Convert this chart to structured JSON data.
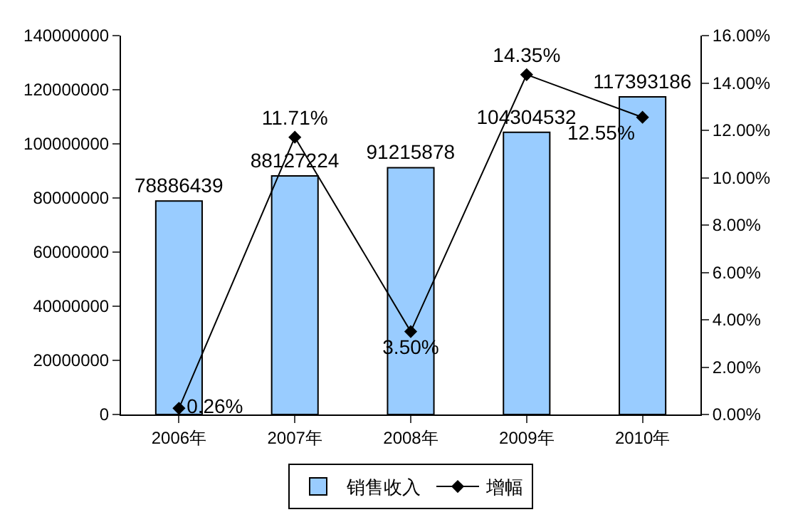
{
  "chart_data": {
    "type": "bar",
    "categories": [
      "2006年",
      "2007年",
      "2008年",
      "2009年",
      "2010年"
    ],
    "series": [
      {
        "name": "销售收入",
        "color": "#99ccff",
        "values": [
          78886439,
          88127224,
          91215878,
          104304532,
          117393186
        ],
        "value_labels": [
          "78886439",
          "88127224",
          "91215878",
          "104304532",
          "117393186"
        ]
      },
      {
        "name": "增幅",
        "type": "line",
        "axis": "y2",
        "color": "#000000",
        "marker": "diamond",
        "values": [
          0.26,
          11.71,
          3.5,
          14.35,
          12.55
        ],
        "value_labels": [
          "0.26%",
          "11.71%",
          "3.50%",
          "14.35%",
          "12.55%"
        ]
      }
    ],
    "ylim": [
      0,
      140000000
    ],
    "yticks": [
      0,
      20000000,
      40000000,
      60000000,
      80000000,
      100000000,
      120000000,
      140000000
    ],
    "y2lim": [
      0,
      16
    ],
    "y2ticks": [
      {
        "value": 0,
        "label": "0.00%"
      },
      {
        "value": 2,
        "label": "2.00%"
      },
      {
        "value": 4,
        "label": "4.00%"
      },
      {
        "value": 6,
        "label": "6.00%"
      },
      {
        "value": 8,
        "label": "8.00%"
      },
      {
        "value": 10,
        "label": "10.00%"
      },
      {
        "value": 12,
        "label": "12.00%"
      },
      {
        "value": 14,
        "label": "14.00%"
      },
      {
        "value": 16,
        "label": "16.00%"
      }
    ],
    "legend": "bottom"
  }
}
